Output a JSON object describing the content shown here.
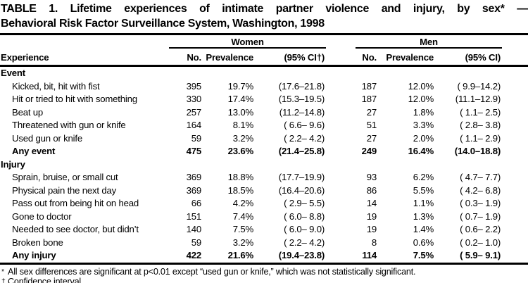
{
  "colors": {
    "text": "#000000",
    "background": "#ffffff"
  },
  "title": {
    "line1": "TABLE 1. Lifetime experiences of intimate partner violence and injury, by sex* —",
    "line2": "Behavioral Risk Factor Surveillance System, Washington, 1998"
  },
  "table": {
    "experience_header": "Experience",
    "groups": [
      {
        "label": "Women",
        "columns": [
          "No.",
          "Prevalence",
          "(95% CI†)"
        ]
      },
      {
        "label": "Men",
        "columns": [
          "No.",
          "Prevalence",
          "(95% CI)"
        ]
      }
    ],
    "sections": [
      {
        "name": "Event",
        "rows": [
          {
            "label": "Kicked, bit, hit with fist",
            "bold": false,
            "women": [
              "395",
              "19.7%",
              "(17.6–21.8)"
            ],
            "men": [
              "187",
              "12.0%",
              "( 9.9–14.2)"
            ]
          },
          {
            "label": "Hit or tried to hit with something",
            "bold": false,
            "women": [
              "330",
              "17.4%",
              "(15.3–19.5)"
            ],
            "men": [
              "187",
              "12.0%",
              "(11.1–12.9)"
            ]
          },
          {
            "label": "Beat up",
            "bold": false,
            "women": [
              "257",
              "13.0%",
              "(11.2–14.8)"
            ],
            "men": [
              "27",
              "1.8%",
              "( 1.1– 2.5)"
            ]
          },
          {
            "label": "Threatened with gun or knife",
            "bold": false,
            "women": [
              "164",
              "8.1%",
              "( 6.6– 9.6)"
            ],
            "men": [
              "51",
              "3.3%",
              "( 2.8– 3.8)"
            ]
          },
          {
            "label": "Used gun or knife",
            "bold": false,
            "women": [
              "59",
              "3.2%",
              "( 2.2– 4.2)"
            ],
            "men": [
              "27",
              "2.0%",
              "( 1.1– 2.9)"
            ]
          },
          {
            "label": "Any event",
            "bold": true,
            "women": [
              "475",
              "23.6%",
              "(21.4–25.8)"
            ],
            "men": [
              "249",
              "16.4%",
              "(14.0–18.8)"
            ]
          }
        ]
      },
      {
        "name": "Injury",
        "rows": [
          {
            "label": "Sprain, bruise, or small cut",
            "bold": false,
            "women": [
              "369",
              "18.8%",
              "(17.7–19.9)"
            ],
            "men": [
              "93",
              "6.2%",
              "( 4.7– 7.7)"
            ]
          },
          {
            "label": "Physical pain the next day",
            "bold": false,
            "women": [
              "369",
              "18.5%",
              "(16.4–20.6)"
            ],
            "men": [
              "86",
              "5.5%",
              "( 4.2– 6.8)"
            ]
          },
          {
            "label": "Pass out from being hit on head",
            "bold": false,
            "women": [
              "66",
              "4.2%",
              "( 2.9– 5.5)"
            ],
            "men": [
              "14",
              "1.1%",
              "( 0.3– 1.9)"
            ]
          },
          {
            "label": "Gone to doctor",
            "bold": false,
            "women": [
              "151",
              "7.4%",
              "( 6.0– 8.8)"
            ],
            "men": [
              "19",
              "1.3%",
              "( 0.7– 1.9)"
            ]
          },
          {
            "label": "Needed to see doctor, but didn’t",
            "bold": false,
            "women": [
              "140",
              "7.5%",
              "( 6.0– 9.0)"
            ],
            "men": [
              "19",
              "1.4%",
              "( 0.6– 2.2)"
            ]
          },
          {
            "label": "Broken bone",
            "bold": false,
            "women": [
              "59",
              "3.2%",
              "( 2.2– 4.2)"
            ],
            "men": [
              "8",
              "0.6%",
              "( 0.2– 1.0)"
            ]
          },
          {
            "label": "Any injury",
            "bold": true,
            "women": [
              "422",
              "21.6%",
              "(19.4–23.8)"
            ],
            "men": [
              "114",
              "7.5%",
              "( 5.9– 9.1)"
            ]
          }
        ]
      }
    ]
  },
  "footnotes": [
    {
      "marker": "*",
      "text": "All sex differences are significant at p<0.01 except “used gun or knife,” which was not statistically significant."
    },
    {
      "marker": "†",
      "text": "Confidence interval."
    }
  ]
}
